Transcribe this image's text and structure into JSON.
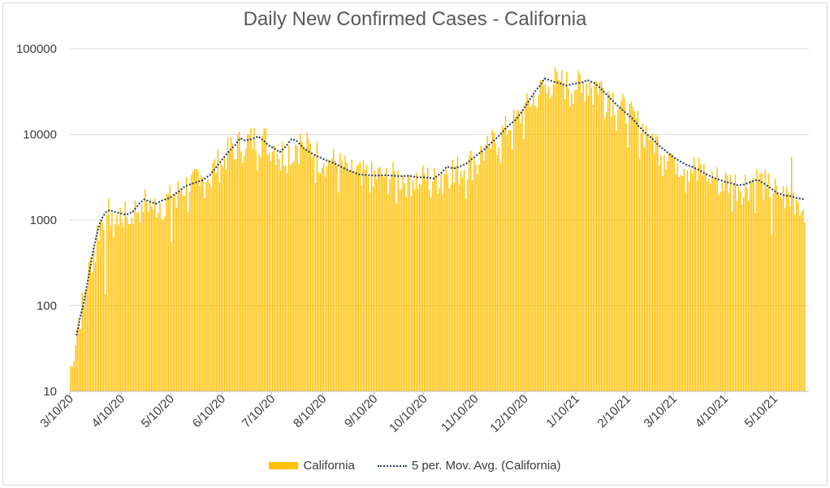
{
  "chart_data": {
    "type": "bar",
    "title": "Daily New Confirmed Cases - California",
    "xlabel": "",
    "ylabel": "",
    "y_scale": "log",
    "ylim": [
      10,
      100000
    ],
    "y_ticks": [
      "10",
      "100",
      "1000",
      "10000",
      "100000"
    ],
    "x_tick_labels": [
      "3/10/20",
      "4/10/20",
      "5/10/20",
      "6/10/20",
      "7/10/20",
      "8/10/20",
      "9/10/20",
      "10/10/20",
      "11/10/20",
      "12/10/20",
      "1/10/21",
      "2/10/21",
      "3/10/21",
      "4/10/21",
      "5/10/21"
    ],
    "x_range_days": [
      0,
      444
    ],
    "grid": "horizontal",
    "series": [
      {
        "name": "California",
        "kind": "bar",
        "color": "#ffc000",
        "note": "daily values, one per day, reconstructed from anchor points (day index, value)",
        "anchors": [
          [
            0,
            20
          ],
          [
            3,
            45
          ],
          [
            5,
            70
          ],
          [
            8,
            130
          ],
          [
            12,
            320
          ],
          [
            16,
            750
          ],
          [
            20,
            1100
          ],
          [
            24,
            1300
          ],
          [
            30,
            1200
          ],
          [
            34,
            1150
          ],
          [
            40,
            1400
          ],
          [
            45,
            1700
          ],
          [
            50,
            1550
          ],
          [
            55,
            1650
          ],
          [
            60,
            1800
          ],
          [
            65,
            2200
          ],
          [
            70,
            2600
          ],
          [
            75,
            2800
          ],
          [
            80,
            3000
          ],
          [
            85,
            3800
          ],
          [
            90,
            5000
          ],
          [
            95,
            6500
          ],
          [
            100,
            7800
          ],
          [
            105,
            8200
          ],
          [
            110,
            9000
          ],
          [
            115,
            9500
          ],
          [
            120,
            8500
          ],
          [
            125,
            7000
          ],
          [
            130,
            6200
          ],
          [
            135,
            7500
          ],
          [
            140,
            8500
          ],
          [
            145,
            7000
          ],
          [
            150,
            5800
          ],
          [
            155,
            5500
          ],
          [
            160,
            4800
          ],
          [
            165,
            4200
          ],
          [
            170,
            3800
          ],
          [
            175,
            3500
          ],
          [
            180,
            3400
          ],
          [
            185,
            3300
          ],
          [
            190,
            3400
          ],
          [
            195,
            3300
          ],
          [
            200,
            3200
          ],
          [
            205,
            3300
          ],
          [
            210,
            3100
          ],
          [
            215,
            3200
          ],
          [
            220,
            3000
          ],
          [
            225,
            3700
          ],
          [
            230,
            4200
          ],
          [
            235,
            4000
          ],
          [
            240,
            4500
          ],
          [
            245,
            5500
          ],
          [
            250,
            6500
          ],
          [
            255,
            8000
          ],
          [
            260,
            10000
          ],
          [
            265,
            13000
          ],
          [
            270,
            15000
          ],
          [
            275,
            20000
          ],
          [
            280,
            28000
          ],
          [
            285,
            35000
          ],
          [
            290,
            42000
          ],
          [
            295,
            45000
          ],
          [
            300,
            40000
          ],
          [
            305,
            38000
          ],
          [
            310,
            40000
          ],
          [
            315,
            42000
          ],
          [
            320,
            38000
          ],
          [
            325,
            32000
          ],
          [
            330,
            25000
          ],
          [
            335,
            20000
          ],
          [
            340,
            16000
          ],
          [
            345,
            12500
          ],
          [
            350,
            10500
          ],
          [
            355,
            8000
          ],
          [
            360,
            6500
          ],
          [
            365,
            5500
          ],
          [
            370,
            4800
          ],
          [
            375,
            4300
          ],
          [
            380,
            4000
          ],
          [
            385,
            3600
          ],
          [
            390,
            3200
          ],
          [
            395,
            2900
          ],
          [
            400,
            2800
          ],
          [
            405,
            2700
          ],
          [
            410,
            2900
          ],
          [
            415,
            3100
          ],
          [
            420,
            2700
          ],
          [
            425,
            2300
          ],
          [
            430,
            2000
          ],
          [
            435,
            1900
          ],
          [
            440,
            1800
          ],
          [
            444,
            1700
          ]
        ]
      },
      {
        "name": "5 per. Mov. Avg. (California)",
        "kind": "line",
        "color": "#1f3864",
        "dash": "dotted",
        "points": [
          [
            4,
            45
          ],
          [
            6,
            70
          ],
          [
            8,
            100
          ],
          [
            10,
            160
          ],
          [
            12,
            260
          ],
          [
            14,
            420
          ],
          [
            16,
            650
          ],
          [
            18,
            900
          ],
          [
            20,
            1100
          ],
          [
            22,
            1250
          ],
          [
            24,
            1300
          ],
          [
            27,
            1250
          ],
          [
            30,
            1200
          ],
          [
            34,
            1150
          ],
          [
            38,
            1250
          ],
          [
            42,
            1550
          ],
          [
            45,
            1750
          ],
          [
            48,
            1650
          ],
          [
            52,
            1550
          ],
          [
            56,
            1700
          ],
          [
            60,
            1800
          ],
          [
            65,
            2100
          ],
          [
            70,
            2500
          ],
          [
            75,
            2700
          ],
          [
            80,
            2900
          ],
          [
            85,
            3400
          ],
          [
            90,
            4500
          ],
          [
            95,
            6000
          ],
          [
            100,
            7500
          ],
          [
            103,
            9000
          ],
          [
            106,
            8500
          ],
          [
            110,
            8800
          ],
          [
            114,
            9500
          ],
          [
            117,
            8500
          ],
          [
            120,
            7500
          ],
          [
            124,
            6800
          ],
          [
            127,
            6200
          ],
          [
            130,
            7000
          ],
          [
            134,
            8800
          ],
          [
            137,
            8500
          ],
          [
            141,
            7000
          ],
          [
            145,
            6200
          ],
          [
            150,
            5500
          ],
          [
            155,
            5000
          ],
          [
            160,
            4600
          ],
          [
            165,
            4100
          ],
          [
            170,
            3700
          ],
          [
            175,
            3400
          ],
          [
            180,
            3350
          ],
          [
            185,
            3300
          ],
          [
            190,
            3350
          ],
          [
            195,
            3300
          ],
          [
            200,
            3250
          ],
          [
            205,
            3300
          ],
          [
            210,
            3150
          ],
          [
            215,
            3150
          ],
          [
            220,
            3050
          ],
          [
            225,
            3600
          ],
          [
            228,
            4200
          ],
          [
            232,
            4000
          ],
          [
            236,
            4200
          ],
          [
            240,
            4600
          ],
          [
            245,
            5500
          ],
          [
            250,
            6500
          ],
          [
            255,
            8000
          ],
          [
            260,
            9800
          ],
          [
            265,
            12500
          ],
          [
            270,
            15000
          ],
          [
            273,
            18000
          ],
          [
            276,
            22000
          ],
          [
            279,
            27000
          ],
          [
            282,
            33000
          ],
          [
            285,
            38000
          ],
          [
            287,
            45000
          ],
          [
            290,
            43000
          ],
          [
            293,
            41000
          ],
          [
            296,
            40000
          ],
          [
            300,
            37000
          ],
          [
            305,
            39000
          ],
          [
            310,
            40500
          ],
          [
            313,
            43000
          ],
          [
            317,
            40000
          ],
          [
            320,
            36000
          ],
          [
            324,
            30000
          ],
          [
            328,
            25000
          ],
          [
            332,
            21000
          ],
          [
            336,
            18000
          ],
          [
            340,
            15500
          ],
          [
            344,
            12500
          ],
          [
            348,
            10500
          ],
          [
            352,
            9000
          ],
          [
            356,
            7500
          ],
          [
            360,
            6500
          ],
          [
            364,
            5600
          ],
          [
            368,
            5000
          ],
          [
            372,
            4500
          ],
          [
            376,
            4200
          ],
          [
            380,
            3900
          ],
          [
            384,
            3500
          ],
          [
            388,
            3200
          ],
          [
            392,
            3000
          ],
          [
            396,
            2800
          ],
          [
            400,
            2700
          ],
          [
            404,
            2550
          ],
          [
            408,
            2600
          ],
          [
            412,
            2800
          ],
          [
            416,
            2950
          ],
          [
            420,
            2650
          ],
          [
            424,
            2350
          ],
          [
            428,
            2050
          ],
          [
            432,
            1950
          ],
          [
            436,
            1900
          ],
          [
            440,
            1800
          ],
          [
            444,
            1750
          ]
        ]
      }
    ]
  },
  "legend": {
    "bar_label": "California",
    "line_label": "5 per. Mov. Avg. (California)"
  }
}
